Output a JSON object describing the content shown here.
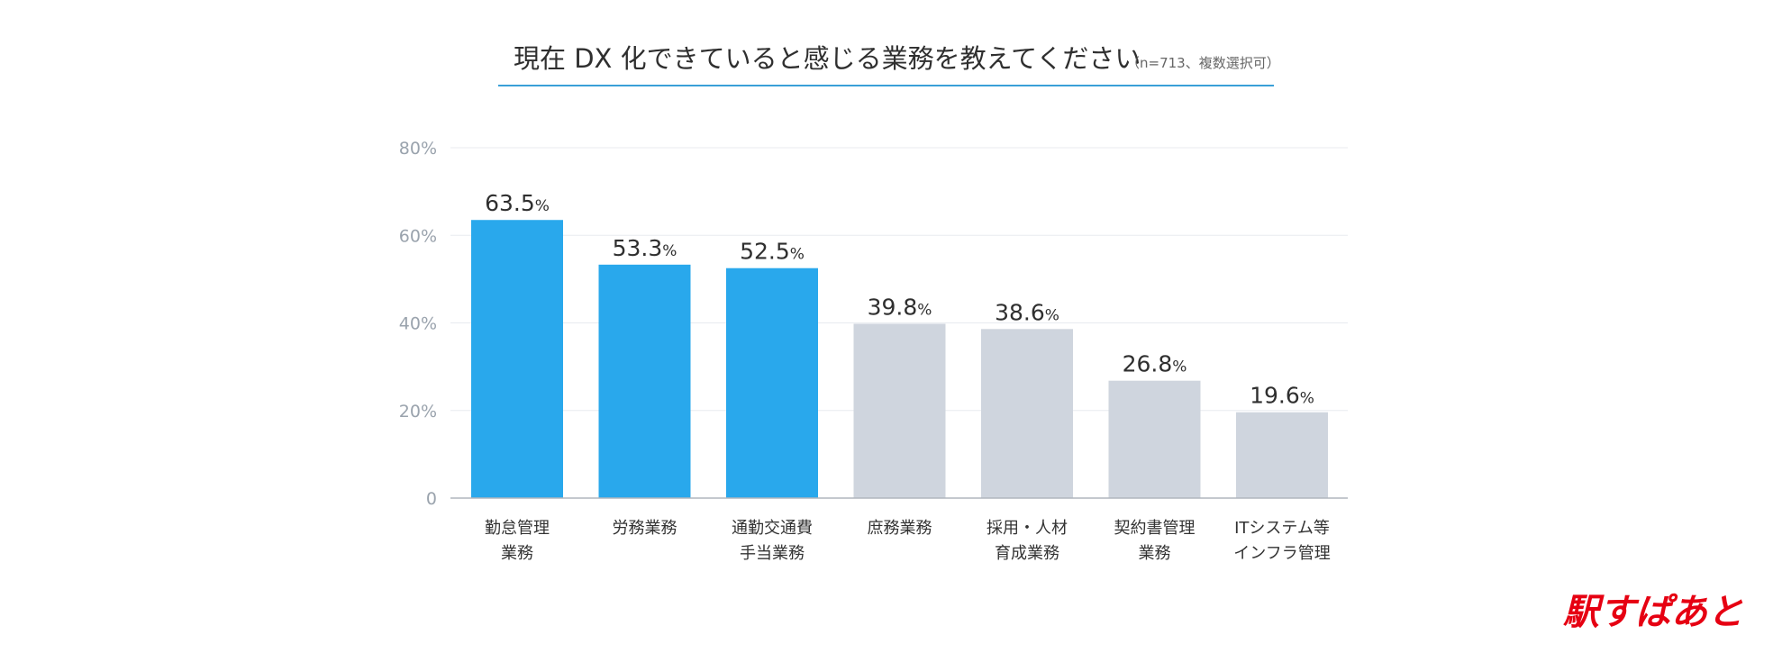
{
  "chart_data": {
    "type": "bar",
    "title": "現在 DX 化できていると感じる業務を教えてください",
    "subtitle": "（n=713、複数選択可）",
    "categories": [
      [
        "勤怠管理",
        "業務"
      ],
      [
        "労務業務"
      ],
      [
        "通勤交通費",
        "手当業務"
      ],
      [
        "庶務業務"
      ],
      [
        "採用・人材",
        "育成業務"
      ],
      [
        "契約書管理",
        "業務"
      ],
      [
        "ITシステム等",
        "インフラ管理"
      ]
    ],
    "values": [
      63.5,
      53.3,
      52.5,
      39.8,
      38.6,
      26.8,
      19.6
    ],
    "value_labels": [
      "63.5",
      "53.3",
      "52.5",
      "39.8",
      "38.6",
      "26.8",
      "19.6"
    ],
    "value_suffix": "%",
    "highlighted": [
      true,
      true,
      true,
      false,
      false,
      false,
      false
    ],
    "ylim": [
      0,
      80
    ],
    "y_ticks": [
      0,
      20,
      40,
      60,
      80
    ],
    "y_tick_labels": [
      "0",
      "20%",
      "40%",
      "60%",
      "80%"
    ],
    "xlabel": "",
    "ylabel": "",
    "grid": true,
    "legend": "none"
  },
  "colors": {
    "highlight": "#29a8ec",
    "muted": "#cfd5de",
    "accent_line": "#3aa0d8",
    "grid": "#e8ebef",
    "axis": "#b0b6bd",
    "brand": "#e60012"
  },
  "logo": {
    "text": "駅すぱあと"
  }
}
